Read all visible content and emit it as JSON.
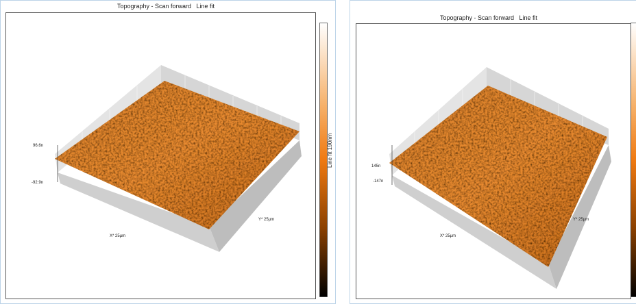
{
  "panels": [
    {
      "title": "Topography - Scan forward   Line fit",
      "z_max": "96.6n",
      "z_min": "-92.9n",
      "x_label": "X* 25µm",
      "y_label": "Y* 25µm",
      "colorbar_label": "Line fit 190nm"
    },
    {
      "title": "Topography - Scan forward   Line fit",
      "z_max": "145n",
      "z_min": "-147n",
      "x_label": "X* 25µm",
      "y_label": "Y* 25µm"
    }
  ]
}
